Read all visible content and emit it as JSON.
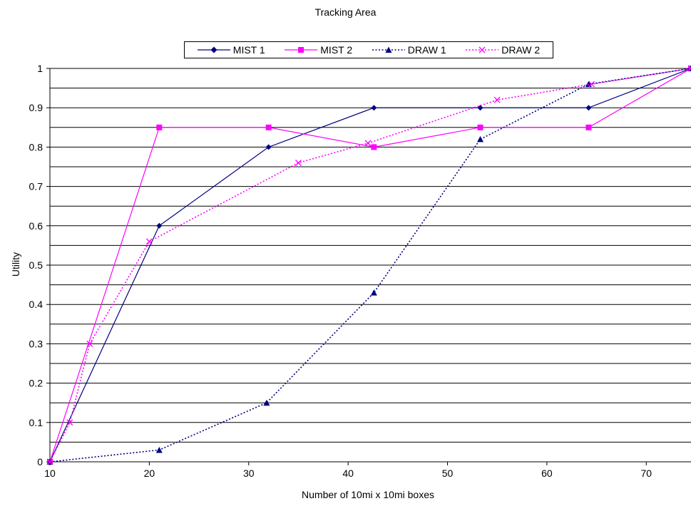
{
  "chart_data": {
    "type": "line",
    "title": "Tracking Area",
    "xlabel": "Number of 10mi x 10mi boxes",
    "ylabel": "Utility",
    "xlim": [
      10,
      74.5
    ],
    "ylim": [
      0,
      1
    ],
    "xticks": [
      "10",
      "20",
      "30",
      "40",
      "50",
      "60",
      "70"
    ],
    "yticks": [
      "0",
      "0.1",
      "0.2",
      "0.3",
      "0.4",
      "0.5",
      "0.6",
      "0.7",
      "0.8",
      "0.9",
      "1"
    ],
    "grid": "horizontal every 0.05",
    "legend_position": "top",
    "series": [
      {
        "name": "MIST 1",
        "color": "#000080",
        "marker": "diamond",
        "dash": "solid",
        "x": [
          10,
          21,
          32,
          42.6,
          53.3,
          64.2,
          74.5
        ],
        "y": [
          0,
          0.6,
          0.8,
          0.9,
          0.9,
          0.9,
          1.0
        ]
      },
      {
        "name": "MIST 2",
        "color": "#ff00ff",
        "marker": "square",
        "dash": "solid",
        "x": [
          10,
          21,
          32,
          42.6,
          53.3,
          64.2,
          74.5
        ],
        "y": [
          0,
          0.85,
          0.85,
          0.8,
          0.85,
          0.85,
          1.0
        ]
      },
      {
        "name": "DRAW 1",
        "color": "#000080",
        "marker": "triangle",
        "dash": "dotted",
        "x": [
          10,
          21,
          31.8,
          42.6,
          53.3,
          64.2,
          74.5
        ],
        "y": [
          0,
          0.03,
          0.15,
          0.43,
          0.82,
          0.96,
          1.0
        ]
      },
      {
        "name": "DRAW 2",
        "color": "#ff00ff",
        "marker": "x",
        "dash": "dotted",
        "x": [
          10,
          12,
          14,
          20,
          35,
          42,
          55,
          64.5,
          74.5
        ],
        "y": [
          0,
          0.1,
          0.3,
          0.56,
          0.76,
          0.81,
          0.92,
          0.96,
          1.0
        ]
      }
    ]
  }
}
